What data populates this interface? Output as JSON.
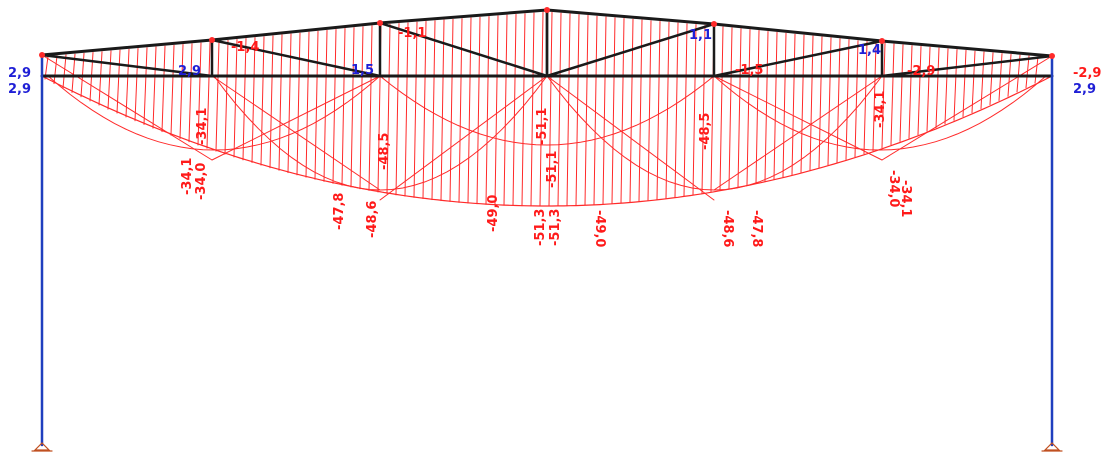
{
  "colors": {
    "background": "#ffffff",
    "structure": "#1a1a1a",
    "column": "#1f3fbf",
    "negative_diagram": "#ff2a2a",
    "positive_label": "#1f1fd6",
    "negative_label": "#ff1a1a"
  },
  "labels_positive": [
    {
      "id": "left-col-top-upper",
      "text": "2,9"
    },
    {
      "id": "left-col-top-lower",
      "text": "2,9"
    },
    {
      "id": "left-panel-1",
      "text": "2,9"
    },
    {
      "id": "left-panel-2",
      "text": "1,5"
    },
    {
      "id": "right-panel-2",
      "text": "1,1"
    },
    {
      "id": "right-panel-1",
      "text": "1,4"
    },
    {
      "id": "right-col-top-lower",
      "text": "2,9"
    }
  ],
  "labels_negative": [
    {
      "id": "top-left-1",
      "text": "-1,4"
    },
    {
      "id": "top-left-2",
      "text": "-1,1"
    },
    {
      "id": "top-right-2",
      "text": "-1,5"
    },
    {
      "id": "top-right-1",
      "text": "-2,9"
    },
    {
      "id": "right-col-top-upper",
      "text": "-2,9"
    },
    {
      "id": "l1a",
      "text": "-34,1"
    },
    {
      "id": "l1b",
      "text": "-34,0"
    },
    {
      "id": "l1c",
      "text": "-34,1"
    },
    {
      "id": "l2a",
      "text": "-47,8"
    },
    {
      "id": "l2b",
      "text": "-48,6"
    },
    {
      "id": "l2c",
      "text": "-48,5"
    },
    {
      "id": "l3a",
      "text": "-49,0"
    },
    {
      "id": "m1",
      "text": "-51,3"
    },
    {
      "id": "m2",
      "text": "-51,3"
    },
    {
      "id": "m3",
      "text": "-51,1"
    },
    {
      "id": "m4",
      "text": "-51,1"
    },
    {
      "id": "r3a",
      "text": "-49,0"
    },
    {
      "id": "r2c",
      "text": "-48,5"
    },
    {
      "id": "r2b",
      "text": "-48,6"
    },
    {
      "id": "r2a",
      "text": "-47,8"
    },
    {
      "id": "r1c",
      "text": "-34,1"
    },
    {
      "id": "r1b",
      "text": "-34,0"
    },
    {
      "id": "r1a",
      "text": "-34,1"
    }
  ]
}
